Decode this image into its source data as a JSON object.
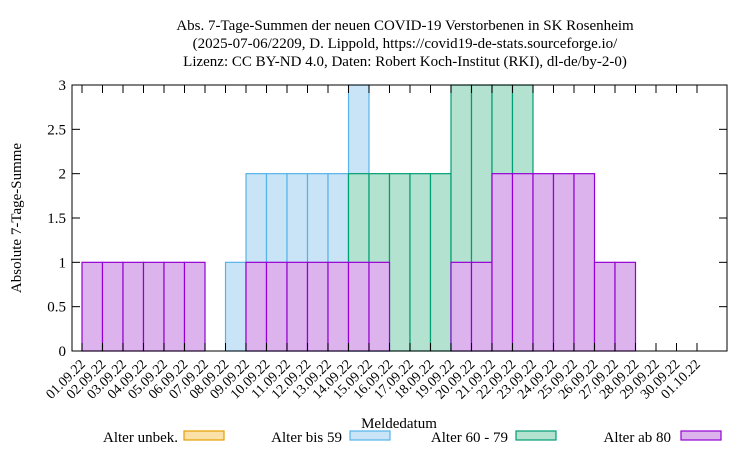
{
  "chart_data": {
    "type": "bar",
    "title": "Abs. 7-Tage-Summen der neuen COVID-19 Verstorbenen in SK Rosenheim",
    "subtitle_lines": [
      "(2025-07-06/2209, D. Lippold, https://covid19-de-stats.sourceforge.io/",
      "Lizenz: CC BY-ND 4.0, Daten: Robert Koch-Institut (RKI), dl-de/by-2-0)"
    ],
    "xlabel": "Meldedatum",
    "ylabel": "Absolute 7-Tage-Summe",
    "ylim": [
      0,
      3
    ],
    "yticks": [
      "0",
      "0.5",
      "1",
      "1.5",
      "2",
      "2.5",
      "3"
    ],
    "stacked": false,
    "categories": [
      "01.09.22",
      "02.09.22",
      "03.09.22",
      "04.09.22",
      "05.09.22",
      "06.09.22",
      "07.09.22",
      "08.09.22",
      "09.09.22",
      "10.09.22",
      "11.09.22",
      "12.09.22",
      "13.09.22",
      "14.09.22",
      "15.09.22",
      "16.09.22",
      "17.09.22",
      "18.09.22",
      "19.09.22",
      "20.09.22",
      "21.09.22",
      "22.09.22",
      "23.09.22",
      "24.09.22",
      "25.09.22",
      "26.09.22",
      "27.09.22",
      "28.09.22",
      "29.09.22",
      "30.09.22",
      "01.10.22"
    ],
    "series": [
      {
        "name": "Alter unbek.",
        "fill": "#fbe0a8",
        "stroke": "#e69f00",
        "values": [
          0,
          0,
          0,
          0,
          0,
          0,
          0,
          0,
          0,
          0,
          0,
          0,
          0,
          0,
          0,
          0,
          0,
          0,
          0,
          0,
          0,
          0,
          0,
          0,
          0,
          0,
          0,
          0,
          0,
          0,
          0
        ]
      },
      {
        "name": "Alter bis 59",
        "fill": "#c9e4f6",
        "stroke": "#56b4e9",
        "values": [
          0,
          0,
          0,
          0,
          0,
          0,
          0,
          1,
          2,
          2,
          2,
          2,
          2,
          3,
          1,
          0,
          0,
          0,
          0,
          0,
          0,
          0,
          0,
          0,
          0,
          0,
          0,
          0,
          0,
          0,
          0
        ]
      },
      {
        "name": "Alter 60 - 79",
        "fill": "#b3e2d0",
        "stroke": "#009e73",
        "values": [
          0,
          0,
          0,
          0,
          0,
          0,
          0,
          0,
          0,
          0,
          0,
          0,
          0,
          2,
          2,
          2,
          2,
          2,
          3,
          3,
          3,
          3,
          0,
          0,
          0,
          0,
          0,
          0,
          0,
          0,
          0
        ]
      },
      {
        "name": "Alter ab 80",
        "fill": "#ddb3ee",
        "stroke": "#9400d3",
        "values": [
          1,
          1,
          1,
          1,
          1,
          1,
          0,
          0,
          1,
          1,
          1,
          1,
          1,
          1,
          1,
          0,
          0,
          0,
          1,
          1,
          2,
          2,
          2,
          2,
          2,
          1,
          1,
          0,
          0,
          0,
          0
        ]
      }
    ],
    "grid": false,
    "legend_position": "bottom"
  }
}
